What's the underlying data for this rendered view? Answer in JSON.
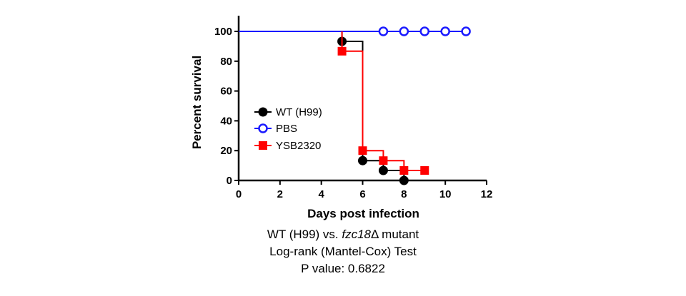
{
  "chart_data": {
    "type": "line",
    "step": true,
    "title": "",
    "xlabel": "Days post infection",
    "ylabel": "Percent survival",
    "xlim": [
      0,
      12
    ],
    "ylim": [
      0,
      100
    ],
    "xticks": [
      0,
      2,
      4,
      6,
      8,
      10,
      12
    ],
    "yticks": [
      0,
      20,
      40,
      60,
      80,
      100
    ],
    "grid": false,
    "legend_position": "middle-left",
    "series": [
      {
        "name": "WT (H99)",
        "color": "#000000",
        "marker": "filled-circle",
        "steps": [
          [
            0,
            100
          ],
          [
            5,
            93.3
          ],
          [
            6,
            13.3
          ],
          [
            7,
            6.7
          ],
          [
            8,
            0
          ]
        ],
        "markers": [
          [
            5,
            93.3
          ],
          [
            6,
            13.3
          ],
          [
            7,
            6.7
          ],
          [
            8,
            0
          ]
        ]
      },
      {
        "name": "PBS",
        "color": "#1a1aff",
        "marker": "open-circle",
        "steps": [
          [
            0,
            100
          ],
          [
            11,
            100
          ]
        ],
        "markers": [
          [
            7,
            100
          ],
          [
            8,
            100
          ],
          [
            9,
            100
          ],
          [
            10,
            100
          ],
          [
            11,
            100
          ]
        ]
      },
      {
        "name": "YSB2320",
        "color": "#ff0000",
        "marker": "filled-square",
        "steps": [
          [
            5,
            100
          ],
          [
            5,
            86.7
          ],
          [
            6,
            86.7
          ],
          [
            6,
            20
          ],
          [
            7,
            20
          ],
          [
            7,
            13.3
          ],
          [
            8,
            13.3
          ],
          [
            8,
            6.7
          ],
          [
            9,
            6.7
          ]
        ],
        "markers": [
          [
            5,
            86.7
          ],
          [
            6,
            20
          ],
          [
            7,
            13.3
          ],
          [
            8,
            6.7
          ],
          [
            9,
            6.7
          ]
        ]
      }
    ]
  },
  "caption": {
    "line1_prefix": "WT (H99) vs. ",
    "line1_gene": "fzc18",
    "line1_delta": "Δ",
    "line1_suffix": " mutant",
    "line2": "Log-rank (Mantel-Cox) Test",
    "line3": "P value: 0.6822"
  }
}
